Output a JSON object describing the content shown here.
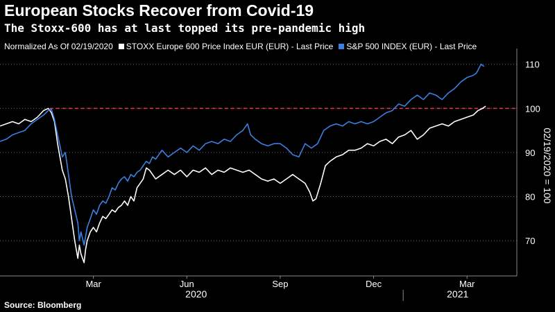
{
  "title": "European Stocks Recover from Covid-19",
  "subtitle": "The Stoxx-600 has at last topped its pre-pandemic high",
  "legend": {
    "note": "Normalized As Of 02/19/2020",
    "items": [
      {
        "label": "STOXX Europe 600 Price Index EUR (EUR) - Last Price",
        "color": "#ffffff"
      },
      {
        "label": "S&P 500 INDEX (EUR) - Last Price",
        "color": "#3b7fe0"
      }
    ]
  },
  "source": "Source: Bloomberg",
  "chart_data": {
    "type": "line",
    "ylabel": "02/19/2020 = 100",
    "ylim": [
      62,
      112
    ],
    "y_ticks": [
      70,
      80,
      90,
      100,
      110
    ],
    "x_tick_labels": [
      "Mar",
      "Jun",
      "Sep",
      "Dec",
      "Mar"
    ],
    "x_tick_months": [
      2,
      5,
      8,
      11,
      14
    ],
    "year_labels": [
      "2020",
      "2021"
    ],
    "x_range_months": [
      -1,
      15.6
    ],
    "reference_line": {
      "value": 100,
      "style": "dashed",
      "color": "#e8384f"
    },
    "grid": "horizontal dotted",
    "series": [
      {
        "name": "STOXX Europe 600 Price Index EUR (EUR) - Last Price",
        "color": "#ffffff",
        "points": [
          [
            -1.0,
            96
          ],
          [
            -0.8,
            96.5
          ],
          [
            -0.6,
            97
          ],
          [
            -0.4,
            96.5
          ],
          [
            -0.2,
            97.5
          ],
          [
            0.0,
            97
          ],
          [
            0.2,
            98
          ],
          [
            0.4,
            99.5
          ],
          [
            0.55,
            100
          ],
          [
            0.65,
            99
          ],
          [
            0.75,
            97
          ],
          [
            0.85,
            92
          ],
          [
            1.0,
            86
          ],
          [
            1.1,
            84
          ],
          [
            1.2,
            80
          ],
          [
            1.3,
            75
          ],
          [
            1.4,
            70
          ],
          [
            1.5,
            66
          ],
          [
            1.55,
            69
          ],
          [
            1.6,
            67
          ],
          [
            1.7,
            65
          ],
          [
            1.75,
            68
          ],
          [
            1.8,
            70
          ],
          [
            1.9,
            72
          ],
          [
            2.0,
            73
          ],
          [
            2.1,
            72
          ],
          [
            2.2,
            74
          ],
          [
            2.3,
            75.5
          ],
          [
            2.4,
            75
          ],
          [
            2.5,
            76
          ],
          [
            2.6,
            77
          ],
          [
            2.7,
            76.5
          ],
          [
            2.8,
            77.5
          ],
          [
            2.9,
            78
          ],
          [
            3.0,
            79
          ],
          [
            3.1,
            78
          ],
          [
            3.2,
            80
          ],
          [
            3.3,
            79
          ],
          [
            3.4,
            82
          ],
          [
            3.5,
            83
          ],
          [
            3.6,
            84
          ],
          [
            3.7,
            86.5
          ],
          [
            3.8,
            86
          ],
          [
            3.9,
            85
          ],
          [
            4.0,
            84
          ],
          [
            4.2,
            85
          ],
          [
            4.4,
            86
          ],
          [
            4.6,
            85
          ],
          [
            4.8,
            86
          ],
          [
            5.0,
            84.5
          ],
          [
            5.2,
            86
          ],
          [
            5.4,
            85.5
          ],
          [
            5.6,
            86.5
          ],
          [
            5.8,
            85
          ],
          [
            6.0,
            86
          ],
          [
            6.2,
            85.5
          ],
          [
            6.4,
            86.5
          ],
          [
            6.6,
            86
          ],
          [
            6.8,
            85.5
          ],
          [
            7.0,
            86
          ],
          [
            7.2,
            85
          ],
          [
            7.4,
            84
          ],
          [
            7.6,
            83.5
          ],
          [
            7.8,
            84
          ],
          [
            8.0,
            83
          ],
          [
            8.2,
            84
          ],
          [
            8.4,
            85
          ],
          [
            8.6,
            84
          ],
          [
            8.8,
            83
          ],
          [
            8.95,
            81
          ],
          [
            9.05,
            79
          ],
          [
            9.15,
            79.5
          ],
          [
            9.3,
            83
          ],
          [
            9.45,
            87
          ],
          [
            9.6,
            88
          ],
          [
            9.8,
            89
          ],
          [
            10.0,
            89.5
          ],
          [
            10.2,
            90.5
          ],
          [
            10.4,
            90.5
          ],
          [
            10.6,
            91
          ],
          [
            10.8,
            92
          ],
          [
            11.0,
            91.5
          ],
          [
            11.2,
            92.5
          ],
          [
            11.4,
            93
          ],
          [
            11.6,
            92
          ],
          [
            11.8,
            93.5
          ],
          [
            12.0,
            94
          ],
          [
            12.2,
            95
          ],
          [
            12.4,
            93
          ],
          [
            12.6,
            94
          ],
          [
            12.8,
            95.5
          ],
          [
            13.0,
            96
          ],
          [
            13.2,
            96.5
          ],
          [
            13.4,
            96
          ],
          [
            13.6,
            97
          ],
          [
            13.8,
            97.5
          ],
          [
            14.0,
            98
          ],
          [
            14.2,
            98.5
          ],
          [
            14.35,
            99.5
          ],
          [
            14.5,
            100
          ],
          [
            14.6,
            100.5
          ]
        ]
      },
      {
        "name": "S&P 500 INDEX (EUR) - Last Price",
        "color": "#3b7fe0",
        "points": [
          [
            -1.0,
            92.5
          ],
          [
            -0.8,
            93
          ],
          [
            -0.6,
            94
          ],
          [
            -0.4,
            94.5
          ],
          [
            -0.2,
            95
          ],
          [
            0.0,
            96.5
          ],
          [
            0.2,
            97.5
          ],
          [
            0.4,
            98.5
          ],
          [
            0.55,
            99.5
          ],
          [
            0.65,
            99.8
          ],
          [
            0.75,
            97.5
          ],
          [
            0.85,
            94
          ],
          [
            1.0,
            89
          ],
          [
            1.1,
            90
          ],
          [
            1.2,
            85
          ],
          [
            1.3,
            80
          ],
          [
            1.4,
            77
          ],
          [
            1.5,
            74
          ],
          [
            1.55,
            70
          ],
          [
            1.6,
            72
          ],
          [
            1.7,
            69
          ],
          [
            1.8,
            73
          ],
          [
            1.9,
            75
          ],
          [
            2.0,
            77
          ],
          [
            2.1,
            76
          ],
          [
            2.2,
            78
          ],
          [
            2.3,
            79
          ],
          [
            2.4,
            78.5
          ],
          [
            2.5,
            80
          ],
          [
            2.6,
            82
          ],
          [
            2.7,
            81.5
          ],
          [
            2.8,
            83
          ],
          [
            2.9,
            84
          ],
          [
            3.0,
            84.5
          ],
          [
            3.1,
            83.5
          ],
          [
            3.2,
            85
          ],
          [
            3.3,
            84.5
          ],
          [
            3.4,
            85.5
          ],
          [
            3.5,
            86
          ],
          [
            3.6,
            87
          ],
          [
            3.7,
            88
          ],
          [
            3.8,
            87.5
          ],
          [
            3.9,
            89
          ],
          [
            4.0,
            88.5
          ],
          [
            4.1,
            89.5
          ],
          [
            4.2,
            90.5
          ],
          [
            4.4,
            89
          ],
          [
            4.6,
            90
          ],
          [
            4.8,
            91
          ],
          [
            5.0,
            90
          ],
          [
            5.2,
            91.5
          ],
          [
            5.4,
            90.5
          ],
          [
            5.6,
            92
          ],
          [
            5.8,
            92.5
          ],
          [
            6.0,
            92
          ],
          [
            6.2,
            93
          ],
          [
            6.4,
            92.5
          ],
          [
            6.6,
            94
          ],
          [
            6.8,
            95
          ],
          [
            6.95,
            96.5
          ],
          [
            7.05,
            94
          ],
          [
            7.2,
            93
          ],
          [
            7.4,
            92
          ],
          [
            7.6,
            91.5
          ],
          [
            7.8,
            92
          ],
          [
            8.0,
            92
          ],
          [
            8.2,
            91
          ],
          [
            8.4,
            89.5
          ],
          [
            8.6,
            89
          ],
          [
            8.8,
            92
          ],
          [
            9.0,
            91
          ],
          [
            9.2,
            92
          ],
          [
            9.4,
            95
          ],
          [
            9.6,
            96
          ],
          [
            9.8,
            96.5
          ],
          [
            10.0,
            96
          ],
          [
            10.2,
            97
          ],
          [
            10.4,
            96.5
          ],
          [
            10.6,
            97
          ],
          [
            10.8,
            96.5
          ],
          [
            11.0,
            97
          ],
          [
            11.2,
            98
          ],
          [
            11.4,
            99
          ],
          [
            11.6,
            99.5
          ],
          [
            11.8,
            101
          ],
          [
            12.0,
            100.5
          ],
          [
            12.2,
            102
          ],
          [
            12.4,
            103
          ],
          [
            12.6,
            102
          ],
          [
            12.8,
            103.5
          ],
          [
            13.0,
            103
          ],
          [
            13.2,
            102
          ],
          [
            13.4,
            103.5
          ],
          [
            13.6,
            104.5
          ],
          [
            13.8,
            106
          ],
          [
            14.0,
            107
          ],
          [
            14.2,
            107.5
          ],
          [
            14.3,
            108
          ],
          [
            14.45,
            110
          ],
          [
            14.55,
            109.5
          ]
        ]
      }
    ]
  }
}
